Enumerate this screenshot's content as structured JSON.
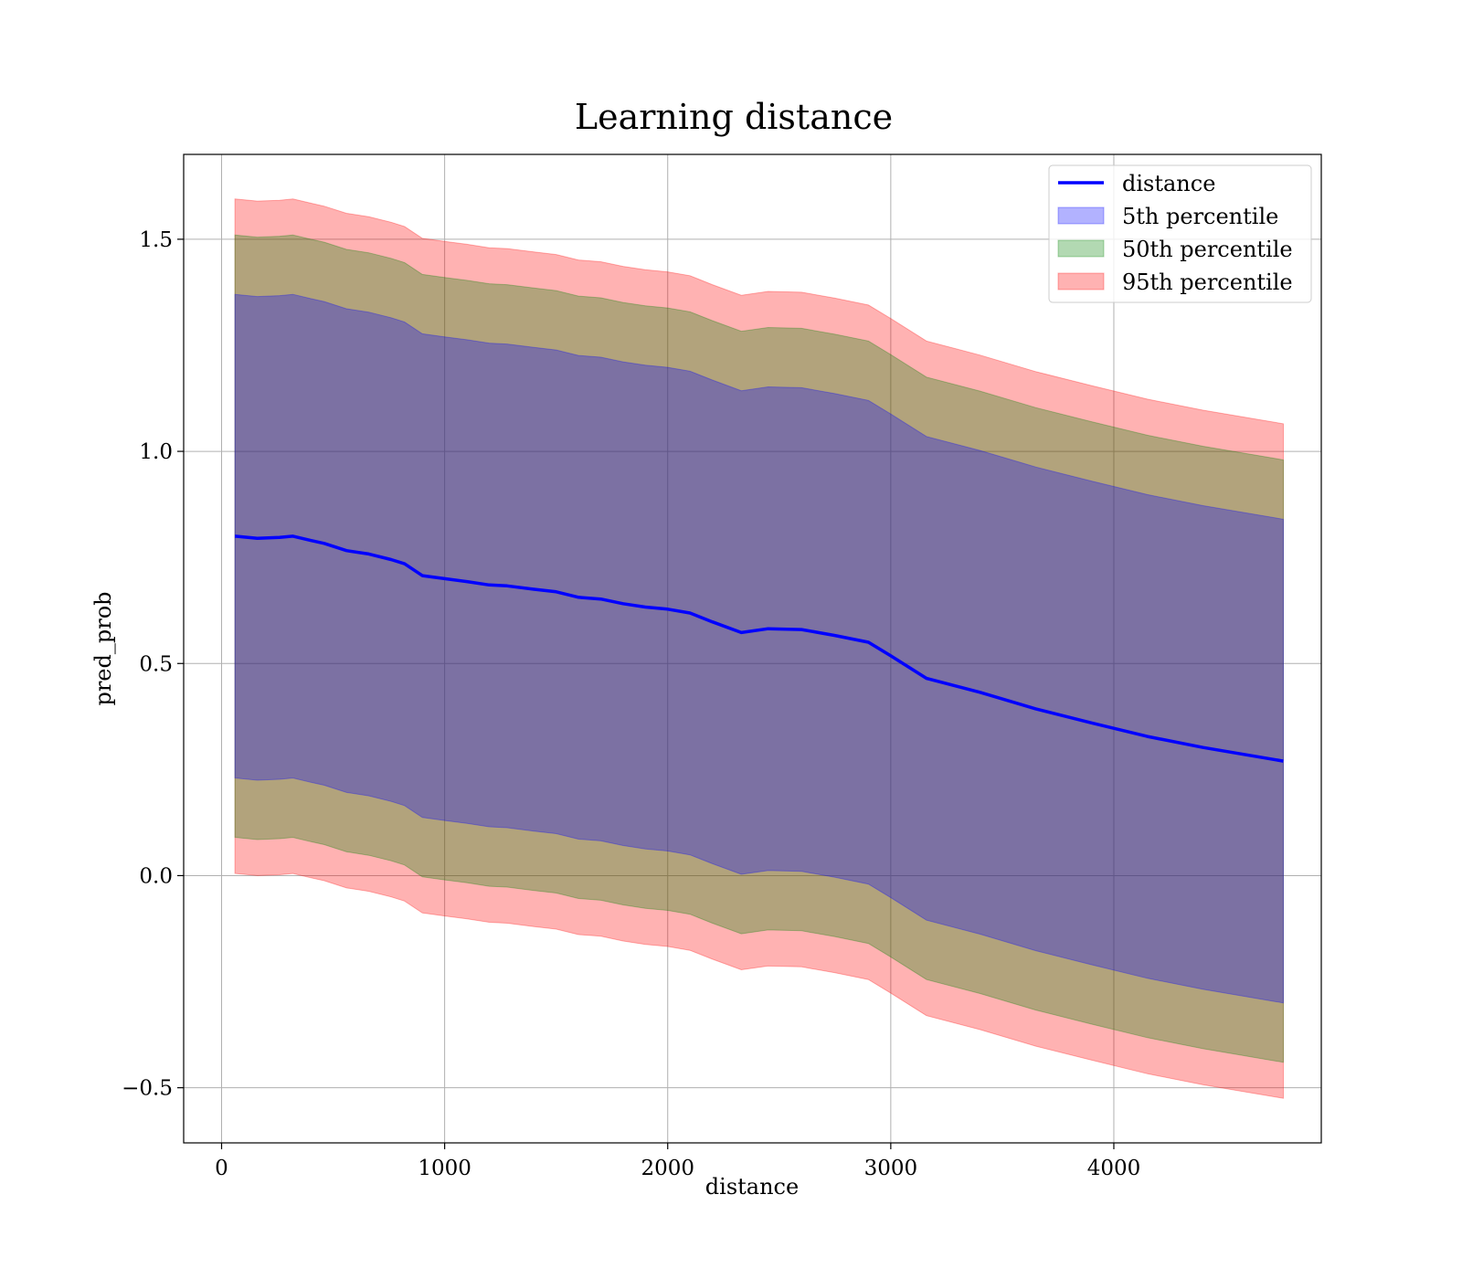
{
  "chart_data": {
    "type": "area",
    "title": "Learning distance",
    "xlabel": "distance",
    "ylabel": "pred_prob",
    "xlim": [
      -170,
      4930
    ],
    "ylim": [
      -0.63,
      1.7
    ],
    "xticks": [
      0,
      1000,
      2000,
      3000,
      4000
    ],
    "xtick_labels": [
      "0",
      "1000",
      "2000",
      "3000",
      "4000"
    ],
    "yticks": [
      -0.5,
      0.0,
      0.5,
      1.0,
      1.5
    ],
    "ytick_labels": [
      "−0.5",
      "0.0",
      "0.5",
      "1.0",
      "1.5"
    ],
    "grid": true,
    "legend_position": "top-right",
    "x": [
      60,
      160,
      260,
      320,
      400,
      460,
      560,
      660,
      760,
      820,
      900,
      1000,
      1100,
      1200,
      1280,
      1400,
      1500,
      1600,
      1700,
      1800,
      1900,
      2000,
      2100,
      2200,
      2330,
      2450,
      2600,
      2750,
      2900,
      3000,
      3160,
      3400,
      3650,
      3900,
      4150,
      4400,
      4760
    ],
    "series": [
      {
        "name": "distance",
        "kind": "line",
        "color": "#0000ff",
        "values": [
          0.8,
          0.795,
          0.797,
          0.8,
          0.79,
          0.783,
          0.766,
          0.758,
          0.745,
          0.735,
          0.707,
          0.7,
          0.693,
          0.685,
          0.683,
          0.675,
          0.669,
          0.656,
          0.652,
          0.641,
          0.633,
          0.628,
          0.619,
          0.598,
          0.573,
          0.582,
          0.58,
          0.566,
          0.55,
          0.518,
          0.465,
          0.432,
          0.393,
          0.36,
          0.328,
          0.302,
          0.27
        ]
      },
      {
        "name": "5th percentile",
        "kind": "band",
        "color": "#0000ff",
        "lower": [
          0.23,
          0.225,
          0.227,
          0.23,
          0.22,
          0.213,
          0.196,
          0.188,
          0.175,
          0.165,
          0.137,
          0.13,
          0.123,
          0.115,
          0.113,
          0.105,
          0.099,
          0.086,
          0.082,
          0.071,
          0.063,
          0.058,
          0.049,
          0.028,
          0.003,
          0.012,
          0.01,
          -0.004,
          -0.02,
          -0.052,
          -0.105,
          -0.138,
          -0.177,
          -0.21,
          -0.242,
          -0.268,
          -0.3
        ],
        "upper": [
          1.37,
          1.365,
          1.367,
          1.37,
          1.36,
          1.353,
          1.336,
          1.328,
          1.315,
          1.305,
          1.277,
          1.27,
          1.263,
          1.255,
          1.253,
          1.245,
          1.239,
          1.226,
          1.222,
          1.211,
          1.203,
          1.198,
          1.189,
          1.168,
          1.143,
          1.152,
          1.15,
          1.136,
          1.12,
          1.088,
          1.035,
          1.002,
          0.963,
          0.93,
          0.898,
          0.872,
          0.84
        ]
      },
      {
        "name": "50th percentile",
        "kind": "band",
        "color": "#008000",
        "lower": [
          0.09,
          0.085,
          0.087,
          0.09,
          0.08,
          0.073,
          0.056,
          0.048,
          0.035,
          0.025,
          -0.003,
          -0.01,
          -0.017,
          -0.025,
          -0.027,
          -0.035,
          -0.041,
          -0.054,
          -0.058,
          -0.069,
          -0.077,
          -0.082,
          -0.091,
          -0.112,
          -0.137,
          -0.128,
          -0.13,
          -0.144,
          -0.16,
          -0.192,
          -0.245,
          -0.278,
          -0.317,
          -0.35,
          -0.382,
          -0.408,
          -0.44
        ],
        "upper": [
          1.51,
          1.505,
          1.507,
          1.51,
          1.5,
          1.493,
          1.476,
          1.468,
          1.455,
          1.445,
          1.417,
          1.41,
          1.403,
          1.395,
          1.393,
          1.385,
          1.379,
          1.366,
          1.362,
          1.351,
          1.343,
          1.338,
          1.329,
          1.308,
          1.283,
          1.292,
          1.29,
          1.276,
          1.26,
          1.228,
          1.175,
          1.142,
          1.103,
          1.07,
          1.038,
          1.012,
          0.98
        ]
      },
      {
        "name": "95th percentile",
        "kind": "band",
        "color": "#ff0000",
        "lower": [
          0.005,
          0.0,
          0.002,
          0.005,
          -0.005,
          -0.012,
          -0.029,
          -0.037,
          -0.05,
          -0.06,
          -0.088,
          -0.095,
          -0.102,
          -0.11,
          -0.112,
          -0.12,
          -0.126,
          -0.139,
          -0.143,
          -0.154,
          -0.162,
          -0.167,
          -0.176,
          -0.197,
          -0.222,
          -0.213,
          -0.215,
          -0.229,
          -0.245,
          -0.277,
          -0.33,
          -0.363,
          -0.402,
          -0.435,
          -0.467,
          -0.493,
          -0.525
        ],
        "upper": [
          1.595,
          1.59,
          1.592,
          1.595,
          1.585,
          1.578,
          1.561,
          1.553,
          1.54,
          1.53,
          1.502,
          1.495,
          1.488,
          1.48,
          1.478,
          1.47,
          1.464,
          1.451,
          1.447,
          1.436,
          1.428,
          1.423,
          1.414,
          1.393,
          1.368,
          1.377,
          1.375,
          1.361,
          1.345,
          1.313,
          1.26,
          1.227,
          1.188,
          1.155,
          1.123,
          1.097,
          1.065
        ]
      }
    ]
  }
}
